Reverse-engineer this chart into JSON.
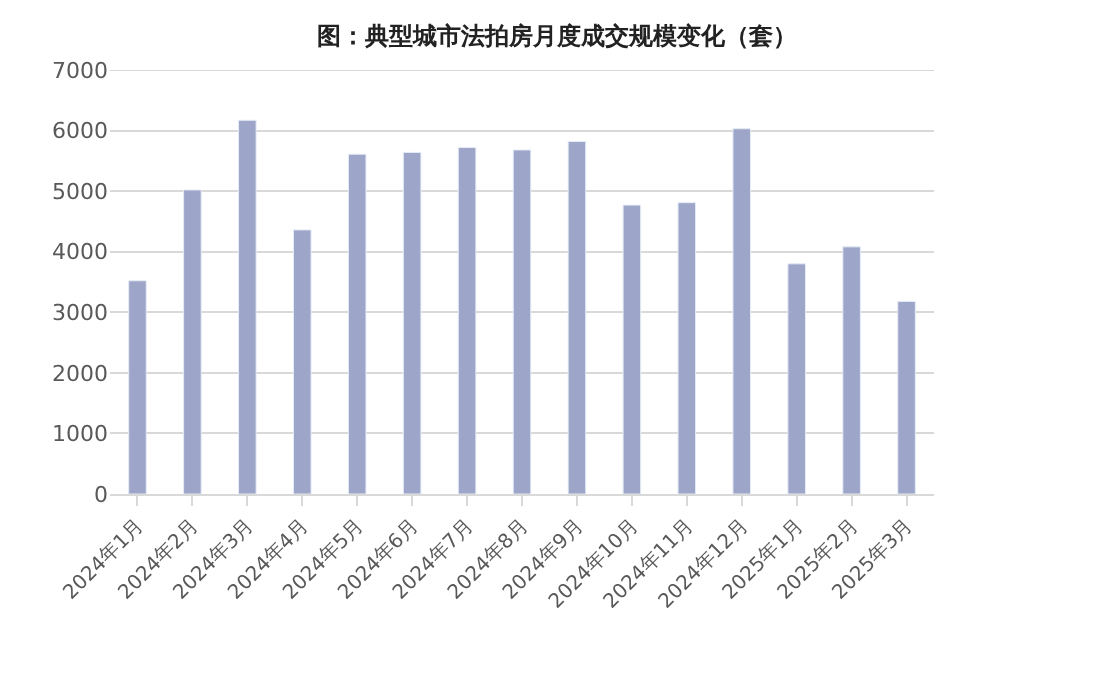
{
  "chart_data": {
    "type": "bar",
    "title": "图：典型城市法拍房月度成交规模变化（套）",
    "categories": [
      "2024年1月",
      "2024年2月",
      "2024年3月",
      "2024年4月",
      "2024年5月",
      "2024年6月",
      "2024年7月",
      "2024年8月",
      "2024年9月",
      "2024年10月",
      "2024年11月",
      "2024年12月",
      "2025年1月",
      "2025年2月",
      "2025年3月"
    ],
    "values": [
      3520,
      5020,
      6170,
      4360,
      5610,
      5640,
      5720,
      5680,
      5820,
      4770,
      4810,
      6030,
      3800,
      4080,
      3180
    ],
    "color": "#9da5c8",
    "ylim": [
      0,
      7000
    ],
    "yticks": [
      0,
      1000,
      2000,
      3000,
      4000,
      5000,
      6000,
      7000
    ],
    "grid": "y"
  }
}
